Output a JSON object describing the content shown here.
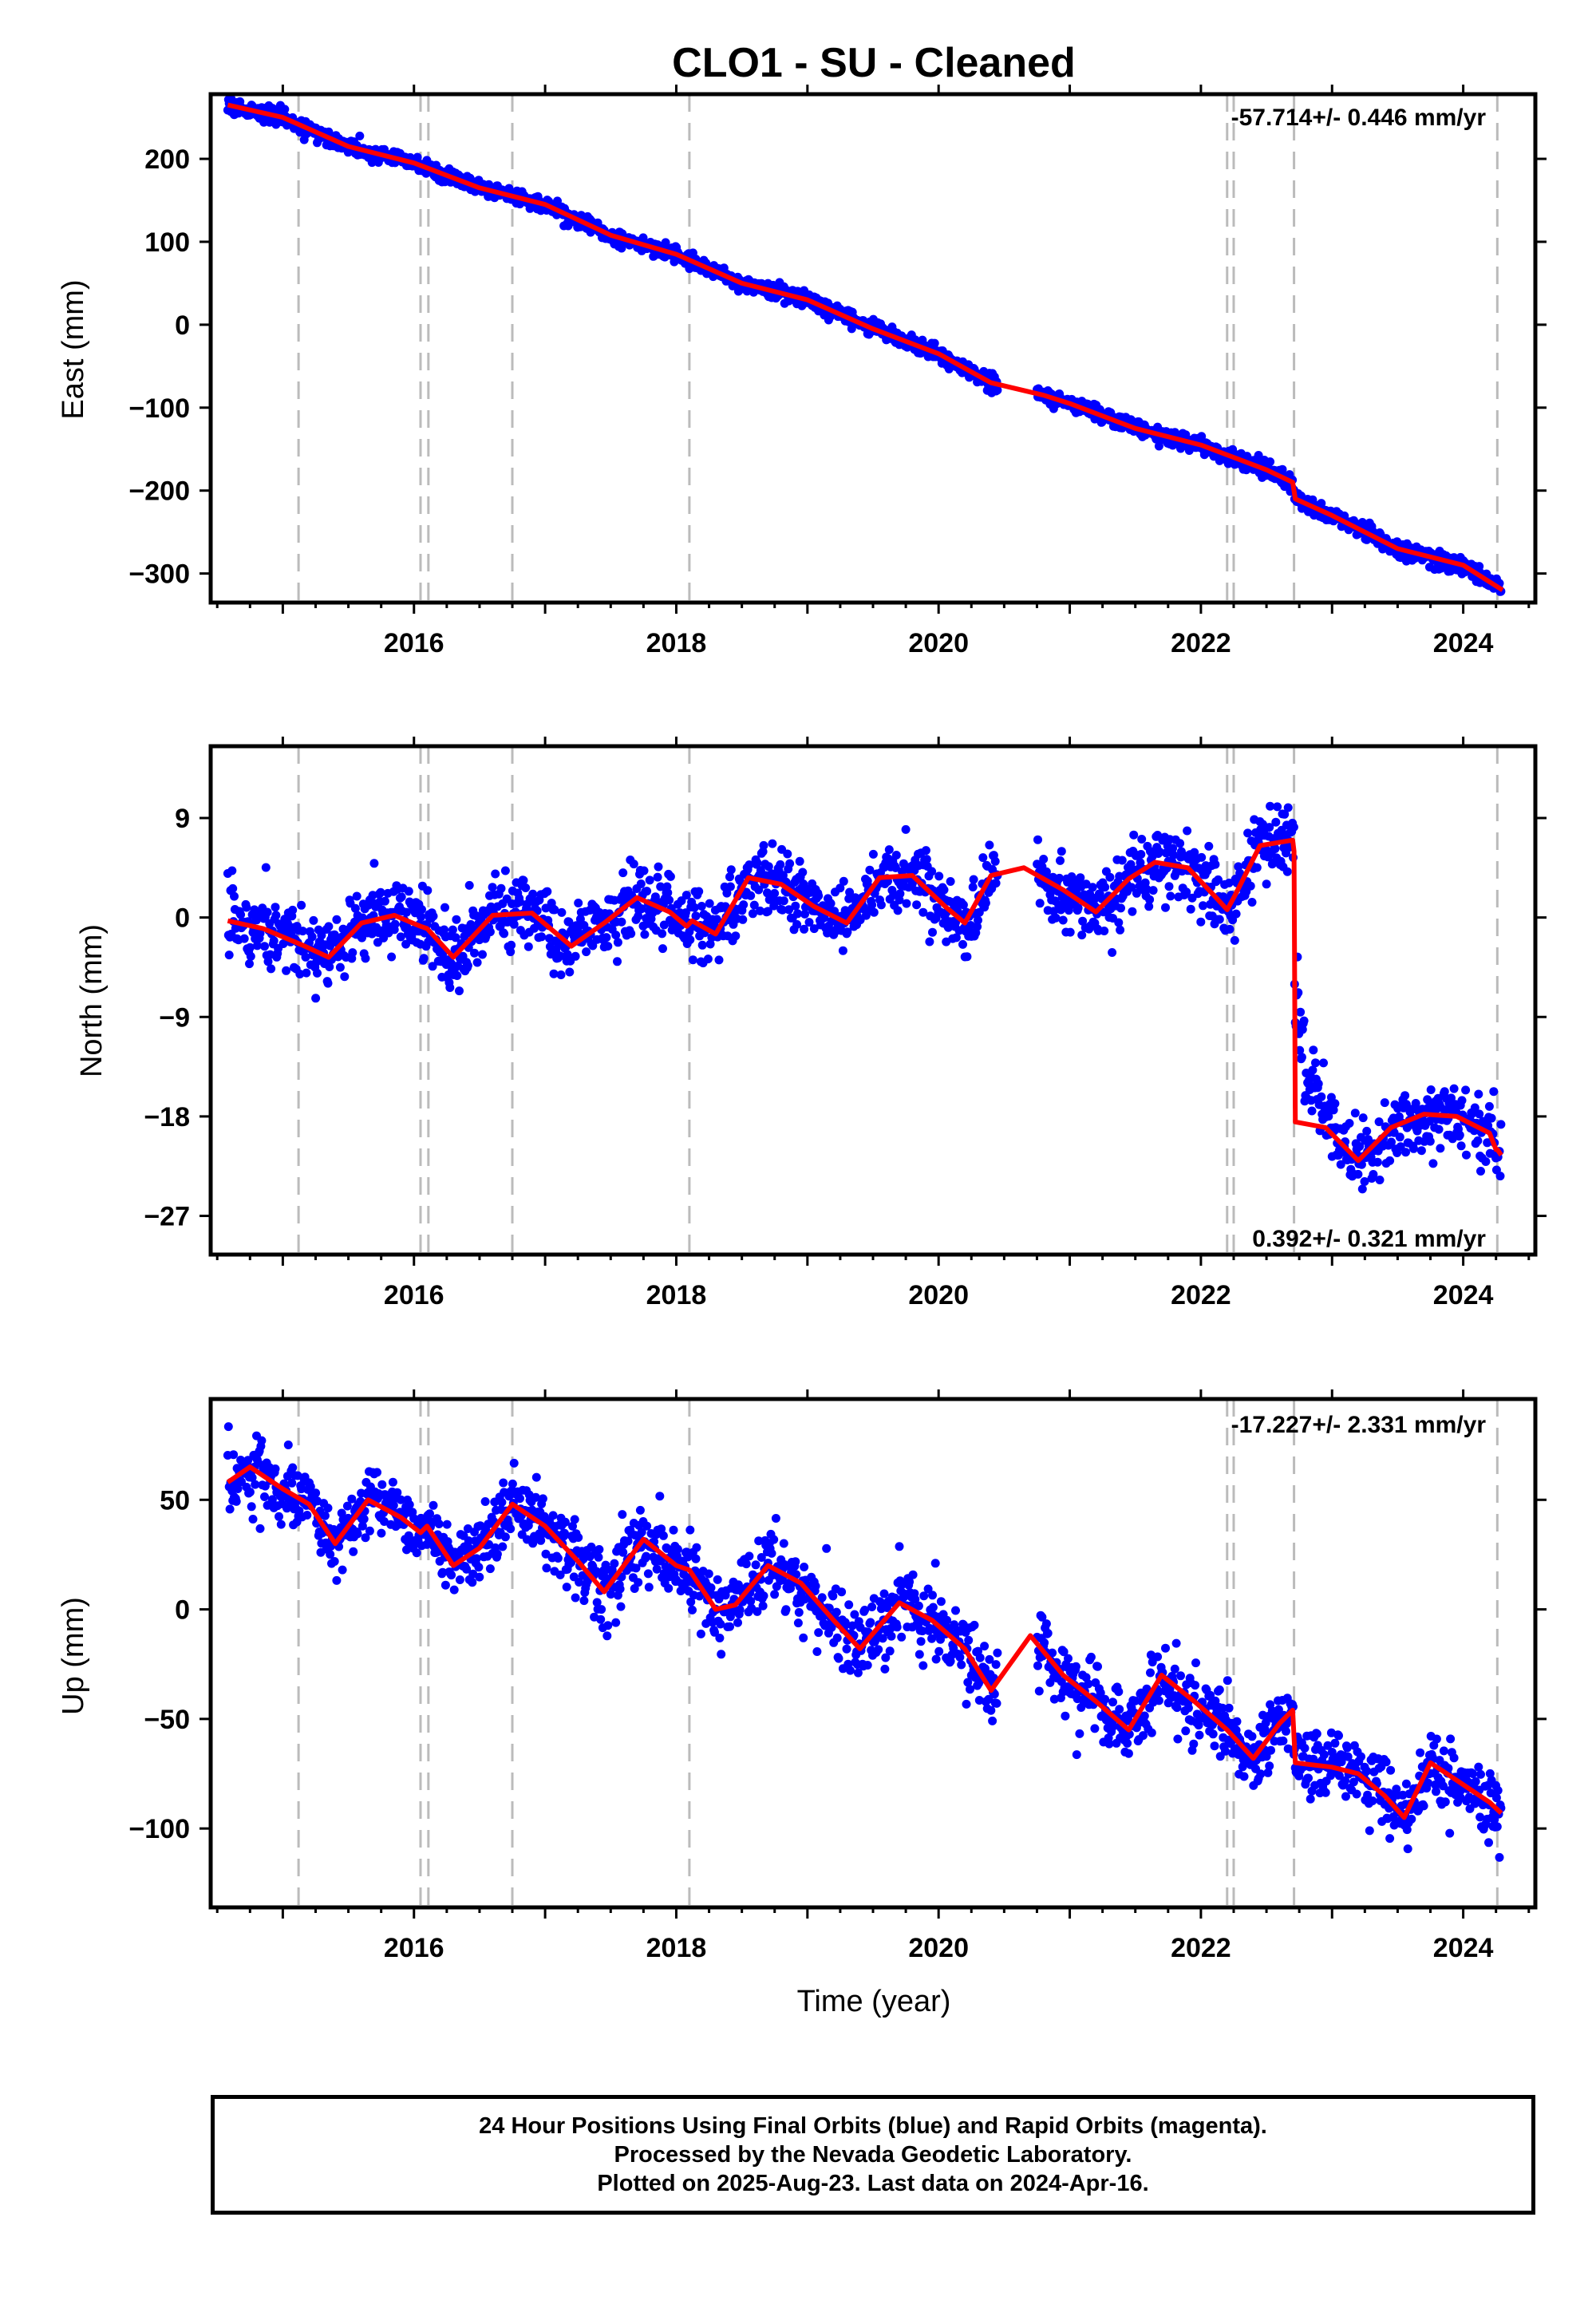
{
  "title": "CLO1  - SU - Cleaned",
  "footer": {
    "line1": "24 Hour Positions Using Final Orbits (blue) and Rapid Orbits (magenta).",
    "line2": "Processed by the Nevada Geodetic Laboratory.",
    "line3": "Plotted on 2025-Aug-23. Last data on 2024-Apr-16."
  },
  "colors": {
    "data": "#0000ff",
    "model": "#ff0000",
    "dashed": "#bbbbbb"
  },
  "chart_data": [
    {
      "type": "scatter",
      "panel": "east",
      "ylabel": "East (mm)",
      "rate_text": "-57.714+/- 0.446 mm/yr",
      "rate_position": "top-right",
      "xlim": [
        2014.45,
        2024.55
      ],
      "ylim": [
        -335,
        278
      ],
      "xticks": [
        2016,
        2018,
        2020,
        2022,
        2024
      ],
      "yticks": [
        200,
        100,
        0,
        -100,
        -200,
        -300
      ],
      "ytick_labels": [
        "200",
        "100",
        "0",
        "−100",
        "−200",
        "−300"
      ],
      "dashed_lines": [
        2015.12,
        2016.05,
        2016.11,
        2016.75,
        2018.1,
        2022.2,
        2022.25,
        2022.71,
        2024.26
      ],
      "model": {
        "x": [
          2014.58,
          2015.0,
          2015.5,
          2016.0,
          2016.5,
          2017.0,
          2017.5,
          2018.0,
          2018.5,
          2019.0,
          2019.5,
          2020.0,
          2020.4,
          2020.8,
          2021.0,
          2021.5,
          2022.0,
          2022.5,
          2022.7,
          2022.72,
          2023.0,
          2023.5,
          2024.0,
          2024.3
        ],
        "y": [
          265,
          250,
          215,
          195,
          165,
          145,
          108,
          85,
          50,
          30,
          -5,
          -35,
          -70,
          -85,
          -95,
          -125,
          -145,
          -175,
          -190,
          -210,
          -230,
          -270,
          -290,
          -320
        ]
      },
      "observations": {
        "x_start": 2014.58,
        "x_end": 2024.29,
        "gaps": [
          [
            2020.45,
            2020.75
          ]
        ],
        "scatter_mm": 5
      }
    },
    {
      "type": "scatter",
      "panel": "north",
      "ylabel": "North (mm)",
      "rate_text": "0.392+/- 0.321 mm/yr",
      "rate_position": "bottom-right",
      "xlim": [
        2014.45,
        2024.55
      ],
      "ylim": [
        -30.5,
        15.5
      ],
      "xticks": [
        2016,
        2018,
        2020,
        2022,
        2024
      ],
      "yticks": [
        9,
        0,
        -9,
        -18,
        -27
      ],
      "ytick_labels": [
        "9",
        "0",
        "−9",
        "−18",
        "−27"
      ],
      "dashed_lines": [
        2015.12,
        2016.05,
        2016.11,
        2016.75,
        2018.1,
        2022.2,
        2022.25,
        2022.71,
        2024.26
      ],
      "model": {
        "x": [
          2014.58,
          2014.85,
          2015.15,
          2015.35,
          2015.6,
          2015.85,
          2016.05,
          2016.1,
          2016.3,
          2016.6,
          2016.9,
          2017.2,
          2017.45,
          2017.7,
          2017.95,
          2018.08,
          2018.12,
          2018.3,
          2018.55,
          2018.8,
          2019.05,
          2019.3,
          2019.55,
          2019.8,
          2020.05,
          2020.2,
          2020.4,
          2020.65,
          2020.95,
          2021.2,
          2021.45,
          2021.65,
          2021.9,
          2022.1,
          2022.2,
          2022.26,
          2022.45,
          2022.7,
          2022.71,
          2022.72,
          2022.95,
          2023.2,
          2023.45,
          2023.7,
          2023.95,
          2024.2,
          2024.25,
          2024.26,
          2024.29
        ],
        "y": [
          -0.3,
          -1.0,
          -2.5,
          -3.6,
          -0.5,
          0.2,
          -0.8,
          -1.0,
          -3.6,
          0.2,
          0.4,
          -2.6,
          -0.5,
          1.8,
          0.5,
          -0.8,
          -0.3,
          -1.5,
          3.6,
          3.0,
          1.0,
          -0.5,
          3.6,
          3.8,
          1.0,
          -0.5,
          3.8,
          4.5,
          2.5,
          0.5,
          3.5,
          5.0,
          4.5,
          2.0,
          0.7,
          2.0,
          6.5,
          7.0,
          6.0,
          -18.5,
          -19.0,
          -22.0,
          -19.0,
          -17.8,
          -18.0,
          -19.5,
          -21.0,
          -21.0,
          -21.5
        ],
        "step_at": 2022.715
      },
      "observations": {
        "x_start": 2014.58,
        "x_end": 2024.29,
        "gaps": [
          [
            2020.45,
            2020.75
          ]
        ],
        "scatter_mm": 1.6
      }
    },
    {
      "type": "scatter",
      "panel": "up",
      "ylabel": "Up (mm)",
      "rate_text": "-17.227+/- 2.331 mm/yr",
      "rate_position": "top-right",
      "xlim": [
        2014.45,
        2024.55
      ],
      "ylim": [
        -136,
        96
      ],
      "xticks": [
        2016,
        2018,
        2020,
        2022,
        2024
      ],
      "xlabel": "Time (year)",
      "yticks": [
        50,
        0,
        -50,
        -100
      ],
      "ytick_labels": [
        "50",
        "0",
        "−50",
        "−100"
      ],
      "dashed_lines": [
        2015.12,
        2016.05,
        2016.11,
        2016.75,
        2018.1,
        2022.2,
        2022.25,
        2022.71,
        2024.26
      ],
      "model": {
        "x": [
          2014.58,
          2014.75,
          2015.0,
          2015.2,
          2015.4,
          2015.65,
          2015.9,
          2016.05,
          2016.1,
          2016.3,
          2016.5,
          2016.75,
          2017.0,
          2017.25,
          2017.45,
          2017.75,
          2018.0,
          2018.1,
          2018.3,
          2018.45,
          2018.7,
          2018.95,
          2019.2,
          2019.4,
          2019.7,
          2019.95,
          2020.2,
          2020.4,
          2020.7,
          2020.95,
          2021.2,
          2021.45,
          2021.7,
          2021.95,
          2022.2,
          2022.4,
          2022.6,
          2022.7,
          2022.72,
          2023.0,
          2023.2,
          2023.4,
          2023.55,
          2023.75,
          2023.95,
          2024.2,
          2024.29
        ],
        "y": [
          58,
          65,
          55,
          48,
          30,
          50,
          42,
          35,
          38,
          20,
          28,
          48,
          38,
          22,
          8,
          32,
          20,
          18,
          0,
          2,
          20,
          12,
          -5,
          -18,
          3,
          -5,
          -18,
          -37,
          -12,
          -30,
          -42,
          -55,
          -30,
          -42,
          -55,
          -68,
          -52,
          -46,
          -70,
          -72,
          -75,
          -85,
          -95,
          -70,
          -78,
          -88,
          -93
        ]
      },
      "observations": {
        "x_start": 2014.58,
        "x_end": 2024.29,
        "gaps": [
          [
            2020.45,
            2020.75
          ]
        ],
        "scatter_mm": 8
      }
    }
  ]
}
